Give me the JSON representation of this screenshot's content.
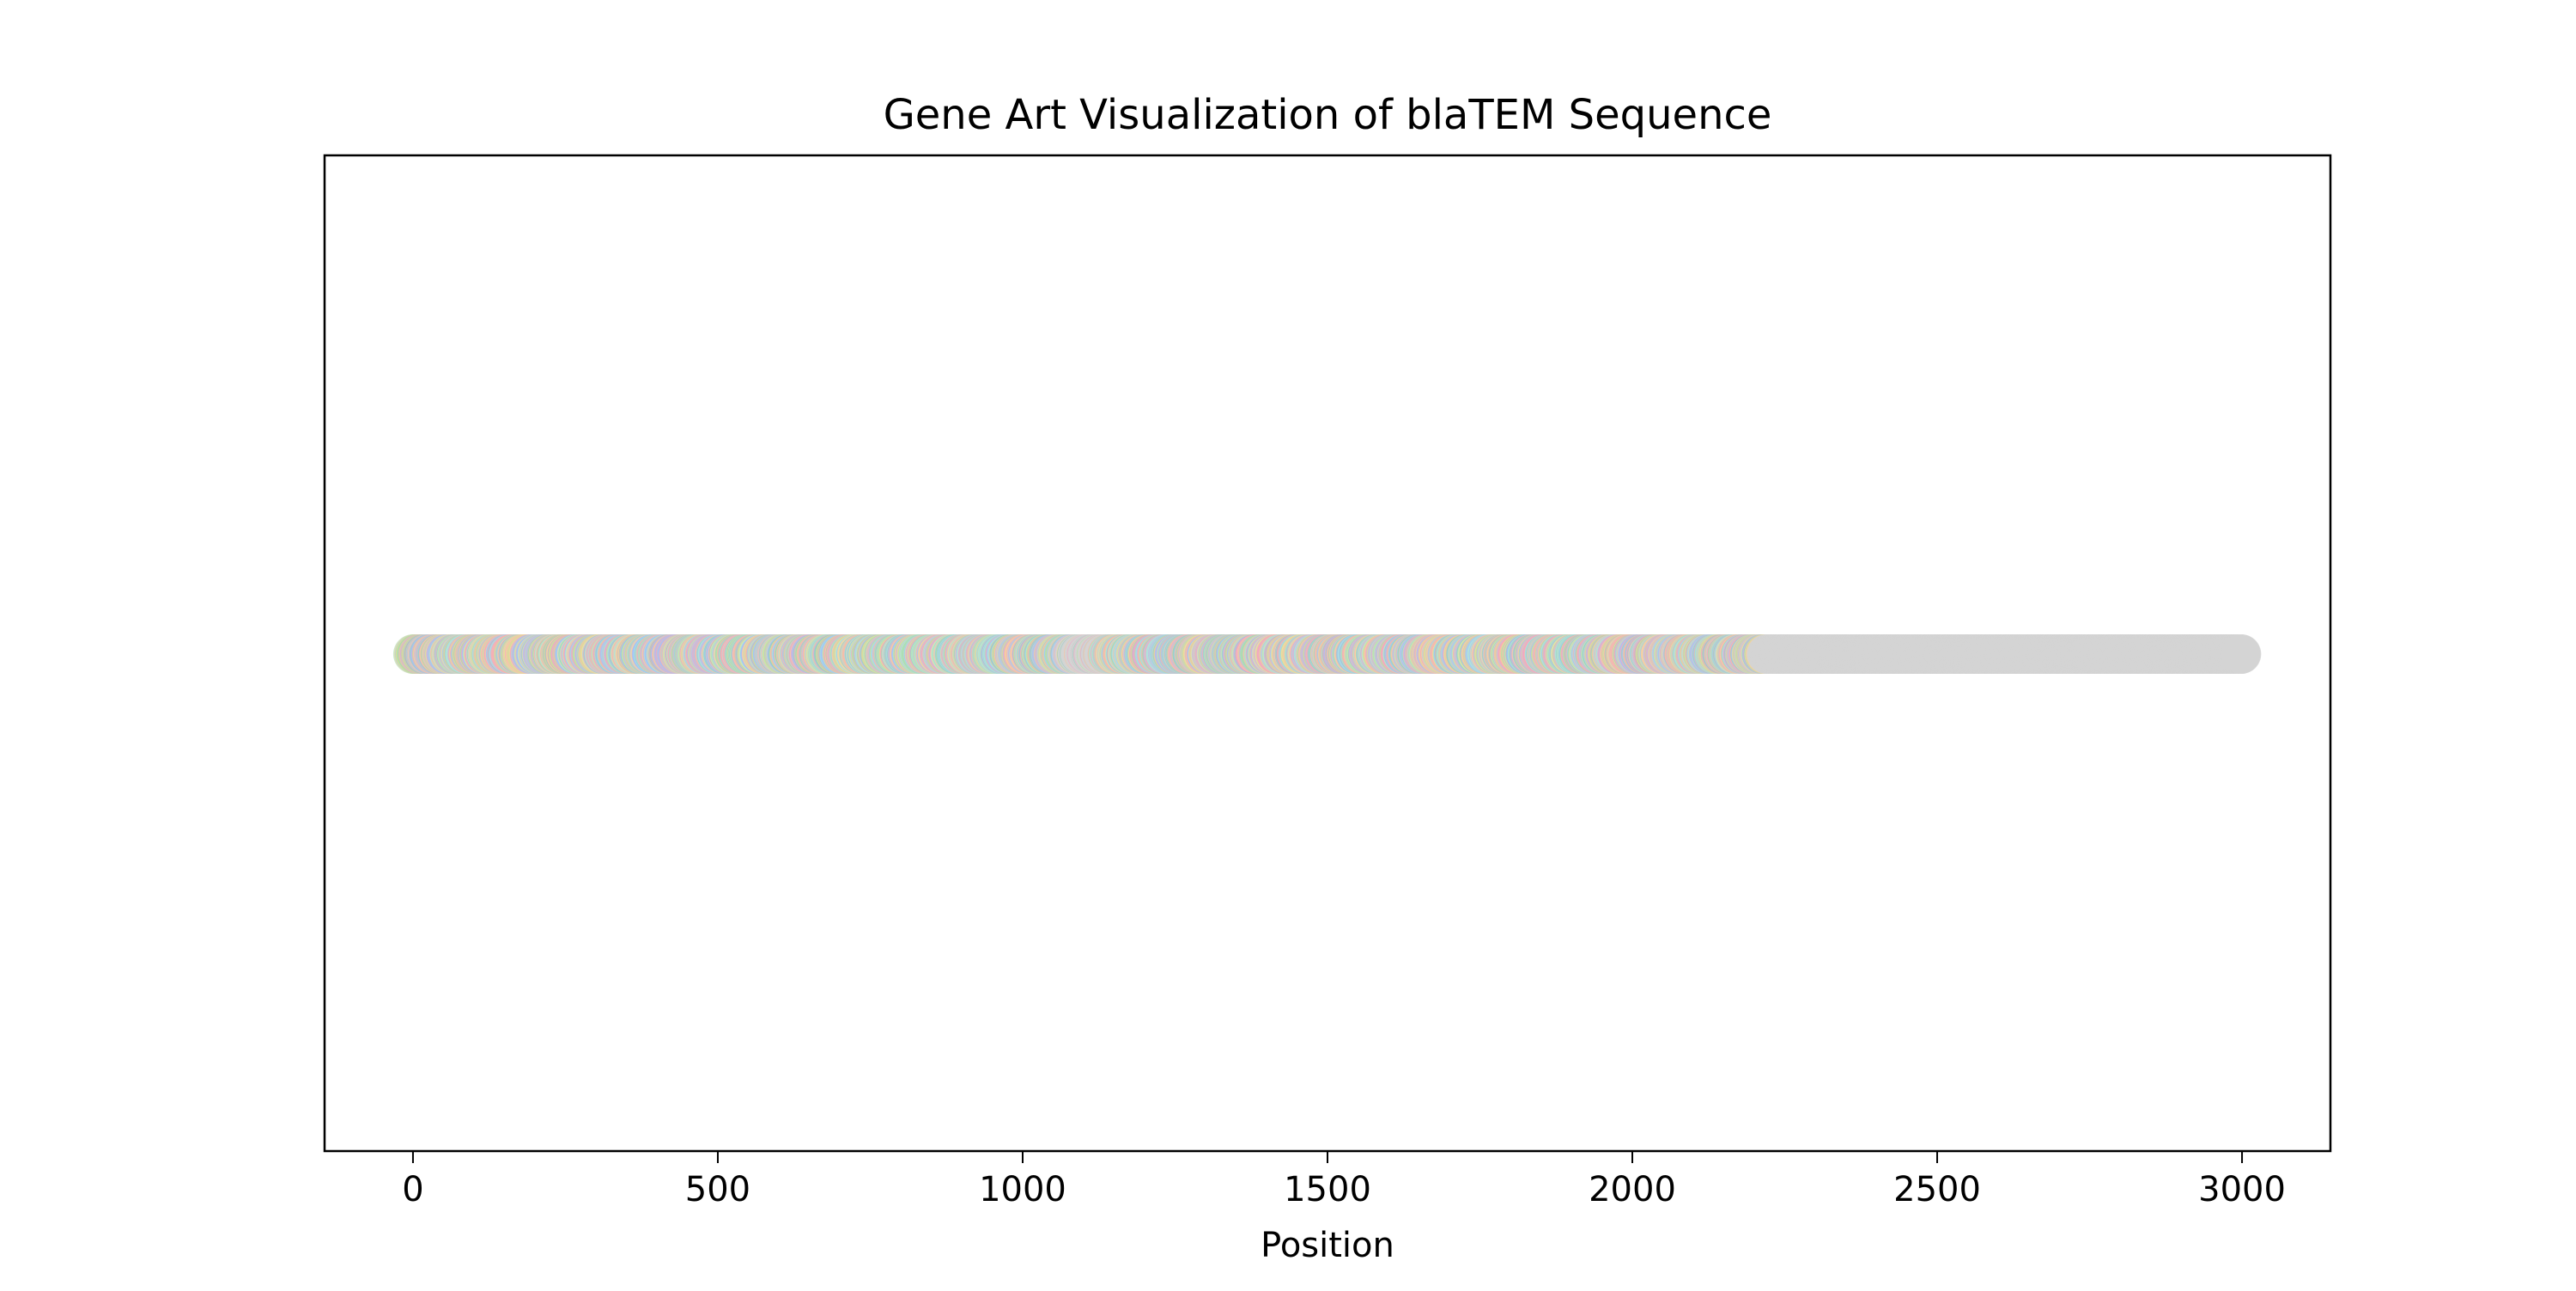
{
  "chart_data": {
    "type": "scatter",
    "title": "Gene Art Visualization of blaTEM Sequence",
    "xlabel": "Position",
    "ylabel": "",
    "xlim": [
      -145,
      3145
    ],
    "xticks": [
      0,
      500,
      1000,
      1500,
      2000,
      2500,
      3000
    ],
    "xtick_labels": [
      "0",
      "500",
      "1000",
      "1500",
      "2000",
      "2500",
      "3000"
    ],
    "y_ticks_visible": false,
    "grid": false,
    "legend": "none",
    "series": [
      {
        "x_start": 0,
        "x_end": 2999,
        "step": 1,
        "y": 0,
        "colored_range": [
          0,
          2220
        ],
        "gray_range": [
          2220,
          2999
        ],
        "gray_spot_range": [
          1080,
          1140
        ]
      }
    ],
    "colors": {
      "palette": [
        "#a8d8ea",
        "#f6b3b3",
        "#b6e3a8",
        "#f7d7a0",
        "#c8b6e2",
        "#9fc5f8",
        "#f3c6a5",
        "#b9e8d0",
        "#d4e09b",
        "#f2a7c3",
        "#9ad0c2",
        "#c9c9c9"
      ],
      "gray": "#d3d3d3"
    }
  }
}
